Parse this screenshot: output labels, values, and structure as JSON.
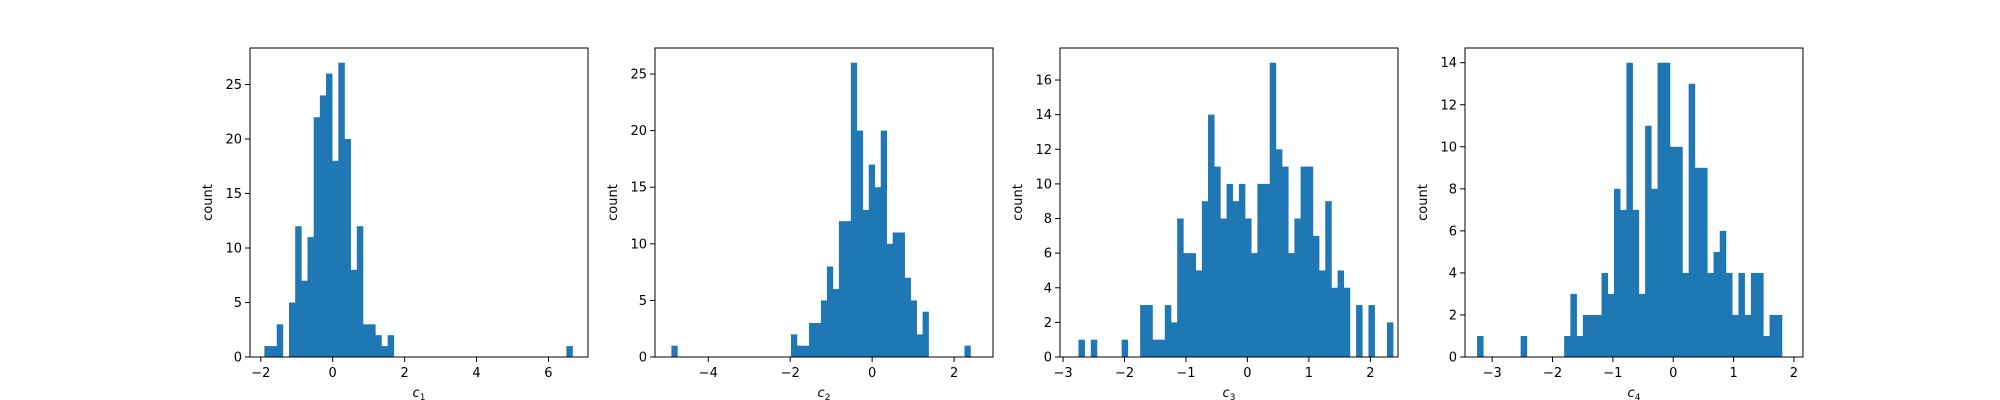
{
  "chart_data": [
    {
      "type": "bar",
      "subtype": "histogram",
      "xlabel_base": "c",
      "xlabel_sub": "1",
      "ylabel": "count",
      "bin_start": -1.9,
      "bin_width": 0.1714,
      "counts": [
        1,
        1,
        3,
        0,
        5,
        12,
        7,
        11,
        22,
        24,
        26,
        18,
        27,
        20,
        8,
        12,
        3,
        3,
        2,
        1,
        2,
        0,
        0,
        0,
        0,
        0,
        0,
        0,
        0,
        0,
        0,
        0,
        0,
        0,
        0,
        0,
        0,
        0,
        0,
        0,
        0,
        0,
        0,
        0,
        0,
        0,
        0,
        0,
        0,
        1
      ],
      "xlim": [
        -2.3,
        7.1
      ],
      "ylim": [
        0,
        28.35
      ],
      "xticks": [
        -2,
        0,
        2,
        4,
        6
      ],
      "yticks": [
        0,
        5,
        10,
        15,
        20,
        25
      ],
      "color": "#1f77b4"
    },
    {
      "type": "bar",
      "subtype": "histogram",
      "xlabel_base": "c",
      "xlabel_sub": "2",
      "ylabel": "count",
      "bin_start": -4.9,
      "bin_width": 0.146,
      "counts": [
        1,
        0,
        0,
        0,
        0,
        0,
        0,
        0,
        0,
        0,
        0,
        0,
        0,
        0,
        0,
        0,
        0,
        0,
        0,
        0,
        2,
        1,
        1,
        3,
        3,
        5,
        8,
        6,
        12,
        12,
        26,
        20,
        13,
        17,
        15,
        20,
        10,
        11,
        11,
        7,
        5,
        2,
        4,
        0,
        0,
        0,
        0,
        0,
        0,
        1
      ],
      "xlim": [
        -5.3,
        2.95
      ],
      "ylim": [
        0,
        27.3
      ],
      "xticks": [
        -4,
        -2,
        0,
        2
      ],
      "yticks": [
        0,
        5,
        10,
        15,
        20,
        25
      ],
      "color": "#1f77b4"
    },
    {
      "type": "bar",
      "subtype": "histogram",
      "xlabel_base": "c",
      "xlabel_sub": "3",
      "ylabel": "count",
      "bin_start": -2.85,
      "bin_width": 0.1004,
      "counts": [
        0,
        1,
        0,
        1,
        0,
        0,
        0,
        0,
        1,
        0,
        0,
        3,
        3,
        1,
        1,
        3,
        2,
        8,
        6,
        6,
        5,
        9,
        14,
        11,
        8,
        10,
        9,
        10,
        8,
        6,
        10,
        10,
        17,
        12,
        11,
        6,
        8,
        11,
        11,
        7,
        5,
        9,
        4,
        5,
        4,
        0,
        3,
        0,
        3,
        0,
        0,
        2
      ],
      "xlim": [
        -3.05,
        2.45
      ],
      "ylim": [
        0,
        17.85
      ],
      "xticks": [
        -3,
        -2,
        -1,
        0,
        1,
        2
      ],
      "yticks": [
        0,
        2,
        4,
        6,
        8,
        10,
        12,
        14,
        16
      ],
      "color": "#1f77b4"
    },
    {
      "type": "bar",
      "subtype": "histogram",
      "xlabel_base": "c",
      "xlabel_sub": "4",
      "ylabel": "count",
      "bin_start": -3.25,
      "bin_width": 0.1031,
      "counts": [
        1,
        0,
        0,
        0,
        0,
        0,
        0,
        1,
        0,
        0,
        0,
        0,
        0,
        0,
        1,
        3,
        1,
        2,
        2,
        2,
        4,
        3,
        8,
        7,
        14,
        7,
        3,
        11,
        8,
        14,
        14,
        10,
        10,
        4,
        13,
        9,
        9,
        4,
        5,
        6,
        4,
        2,
        4,
        2,
        4,
        4,
        1,
        2,
        2
      ],
      "xlim": [
        -3.45,
        2.15
      ],
      "ylim": [
        0,
        14.7
      ],
      "xticks": [
        -3,
        -2,
        -1,
        0,
        1,
        2
      ],
      "yticks": [
        0,
        2,
        4,
        6,
        8,
        10,
        12,
        14
      ],
      "color": "#1f77b4"
    }
  ]
}
